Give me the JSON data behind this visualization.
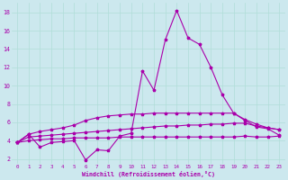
{
  "bg_color": "#cce8ee",
  "grid_color": "#aaddcc",
  "line_color": "#aa00aa",
  "xlabel": "Windchill (Refroidissement éolien,°C)",
  "xlabel_color": "#aa00aa",
  "ylim": [
    1.5,
    19
  ],
  "xlim": [
    -0.5,
    23.5
  ],
  "yticks": [
    2,
    4,
    6,
    8,
    10,
    12,
    14,
    16,
    18
  ],
  "xticks": [
    0,
    1,
    2,
    3,
    4,
    5,
    6,
    7,
    8,
    9,
    10,
    11,
    12,
    13,
    14,
    15,
    16,
    17,
    18,
    19,
    20,
    21,
    22,
    23
  ],
  "line1_x": [
    0,
    1,
    2,
    3,
    4,
    5,
    6,
    7,
    8,
    9,
    10,
    11,
    12,
    13,
    14,
    15,
    16,
    17,
    18,
    19,
    20,
    21,
    22,
    23
  ],
  "line1_y": [
    3.8,
    4.7,
    3.3,
    3.8,
    3.9,
    4.0,
    1.9,
    3.0,
    2.9,
    4.5,
    4.8,
    11.6,
    9.5,
    15.0,
    18.2,
    15.2,
    14.5,
    12.0,
    9.0,
    7.0,
    6.2,
    5.5,
    5.3,
    4.6
  ],
  "line2_x": [
    0,
    1,
    2,
    3,
    4,
    5,
    6,
    7,
    8,
    9,
    10,
    11,
    12,
    13,
    14,
    15,
    16,
    17,
    18,
    19,
    20,
    21,
    22,
    23
  ],
  "line2_y": [
    3.8,
    4.7,
    5.0,
    5.2,
    5.4,
    5.7,
    6.2,
    6.5,
    6.7,
    6.8,
    6.9,
    6.9,
    7.0,
    7.0,
    7.0,
    7.0,
    7.0,
    7.0,
    7.0,
    7.0,
    6.3,
    5.8,
    5.4,
    5.2
  ],
  "line3_x": [
    0,
    1,
    2,
    3,
    4,
    5,
    6,
    7,
    8,
    9,
    10,
    11,
    12,
    13,
    14,
    15,
    16,
    17,
    18,
    19,
    20,
    21,
    22,
    23
  ],
  "line3_y": [
    3.8,
    4.4,
    4.5,
    4.6,
    4.7,
    4.8,
    4.9,
    5.0,
    5.1,
    5.2,
    5.3,
    5.4,
    5.5,
    5.6,
    5.6,
    5.7,
    5.7,
    5.8,
    5.8,
    5.9,
    5.9,
    5.6,
    5.4,
    5.2
  ],
  "line4_x": [
    0,
    1,
    2,
    3,
    4,
    5,
    6,
    7,
    8,
    9,
    10,
    11,
    12,
    13,
    14,
    15,
    16,
    17,
    18,
    19,
    20,
    21,
    22,
    23
  ],
  "line4_y": [
    3.8,
    4.0,
    4.1,
    4.2,
    4.2,
    4.3,
    4.3,
    4.3,
    4.3,
    4.4,
    4.4,
    4.4,
    4.4,
    4.4,
    4.4,
    4.4,
    4.4,
    4.4,
    4.4,
    4.4,
    4.5,
    4.4,
    4.4,
    4.5
  ]
}
